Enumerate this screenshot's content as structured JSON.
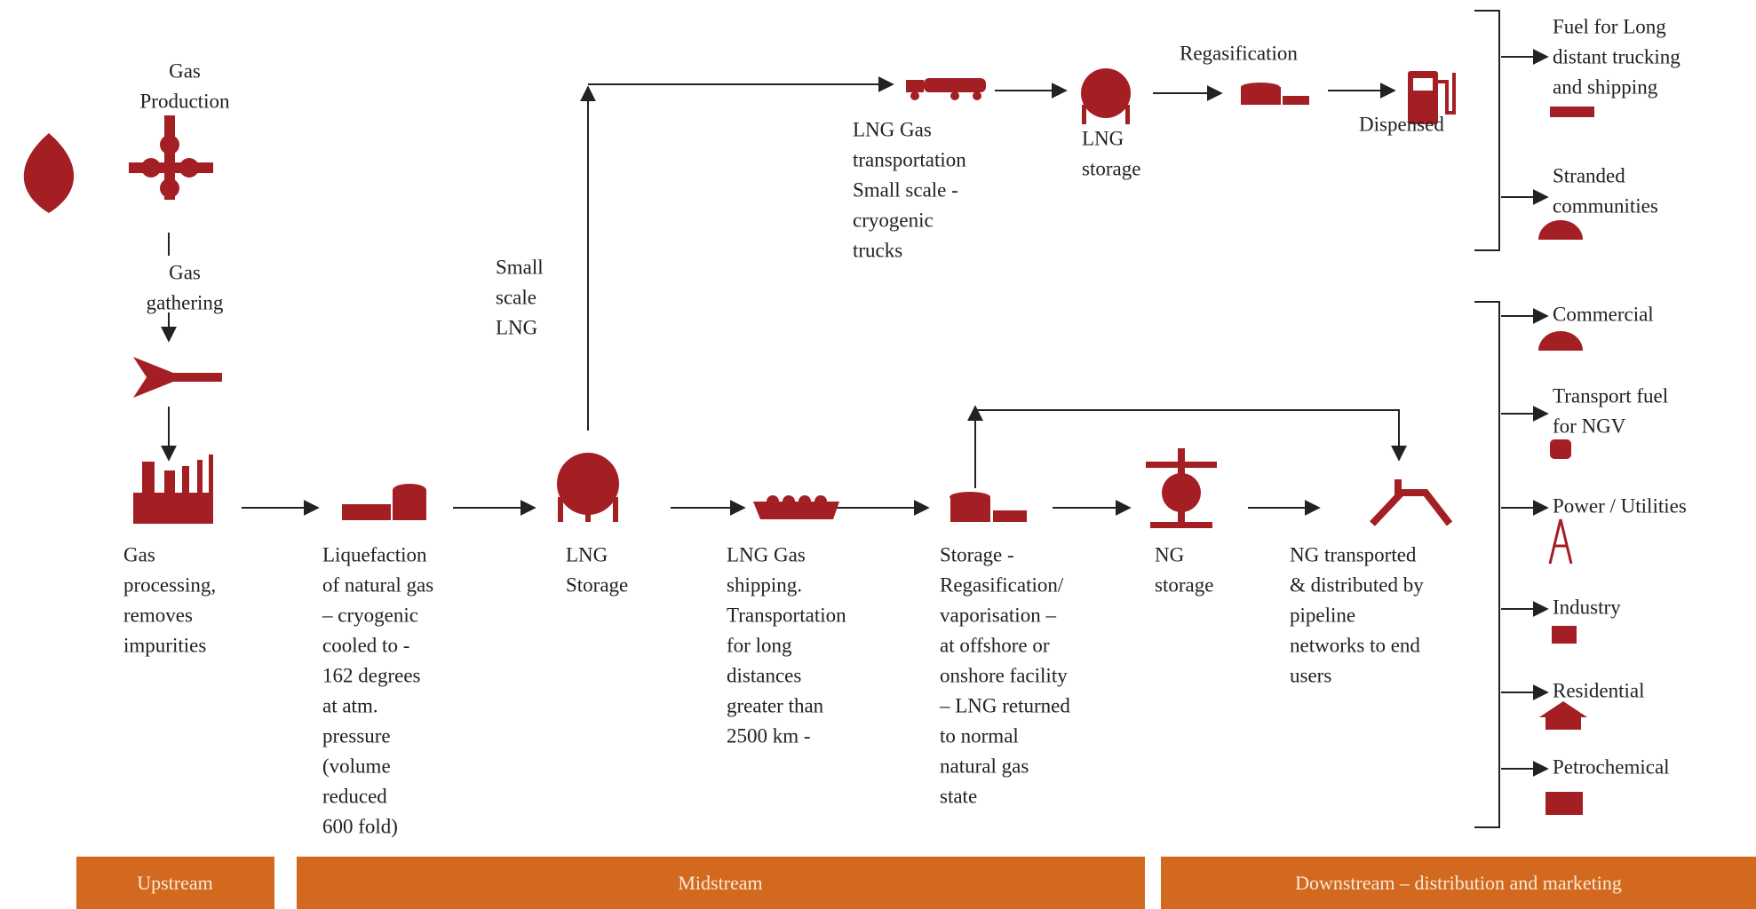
{
  "nodes": [
    {
      "lines": [
        "Gas",
        "Production"
      ]
    },
    {
      "lines": [
        "Gas",
        "gathering"
      ]
    },
    {
      "lines": [
        "Gas",
        "processing,",
        "removes",
        "impurities"
      ]
    },
    {
      "lines": [
        "Liquefaction",
        "of natural gas",
        "– cryogenic",
        "cooled to -",
        "162 degrees",
        "at atm.",
        "pressure",
        "(volume",
        "reduced",
        "600 fold)"
      ]
    },
    {
      "lines": [
        "LNG",
        "Storage"
      ]
    },
    {
      "lines": [
        "LNG Gas",
        "shipping.",
        "Transportation",
        "for long",
        "distances",
        "greater than",
        "2500 km -"
      ]
    },
    {
      "lines": [
        "Storage -",
        "Regasification/",
        "vaporisation –",
        "at offshore or",
        "onshore facility",
        "– LNG returned",
        "to normal",
        "natural gas",
        "state"
      ]
    },
    {
      "lines": [
        "NG",
        "storage"
      ]
    },
    {
      "lines": [
        "NG transported",
        "& distributed by",
        "pipeline",
        "networks to end",
        "users"
      ]
    },
    {
      "lines": [
        "LNG Gas",
        "transportation",
        "Small scale -",
        "cryogenic",
        "trucks"
      ]
    },
    {
      "lines": [
        "LNG",
        "storage"
      ]
    },
    {
      "lines": [
        "Regasification"
      ]
    },
    {
      "lines": [
        "Dispensed"
      ]
    }
  ],
  "branch_label": {
    "lines": [
      "Small",
      "scale",
      "LNG"
    ]
  },
  "outputs": [
    {
      "lines": [
        "Fuel for Long",
        "distant trucking",
        "and shipping"
      ]
    },
    {
      "lines": [
        "Stranded",
        "communities"
      ]
    },
    {
      "lines": [
        "Commercial"
      ]
    },
    {
      "lines": [
        "Transport fuel",
        "for NGV"
      ]
    },
    {
      "lines": [
        "Power / Utilities"
      ]
    },
    {
      "lines": [
        "Industry"
      ]
    },
    {
      "lines": [
        "Residential"
      ]
    },
    {
      "lines": [
        "Petrochemical"
      ]
    }
  ],
  "stages": [
    "Upstream",
    "Midstream",
    "Downstream – distribution and marketing"
  ]
}
